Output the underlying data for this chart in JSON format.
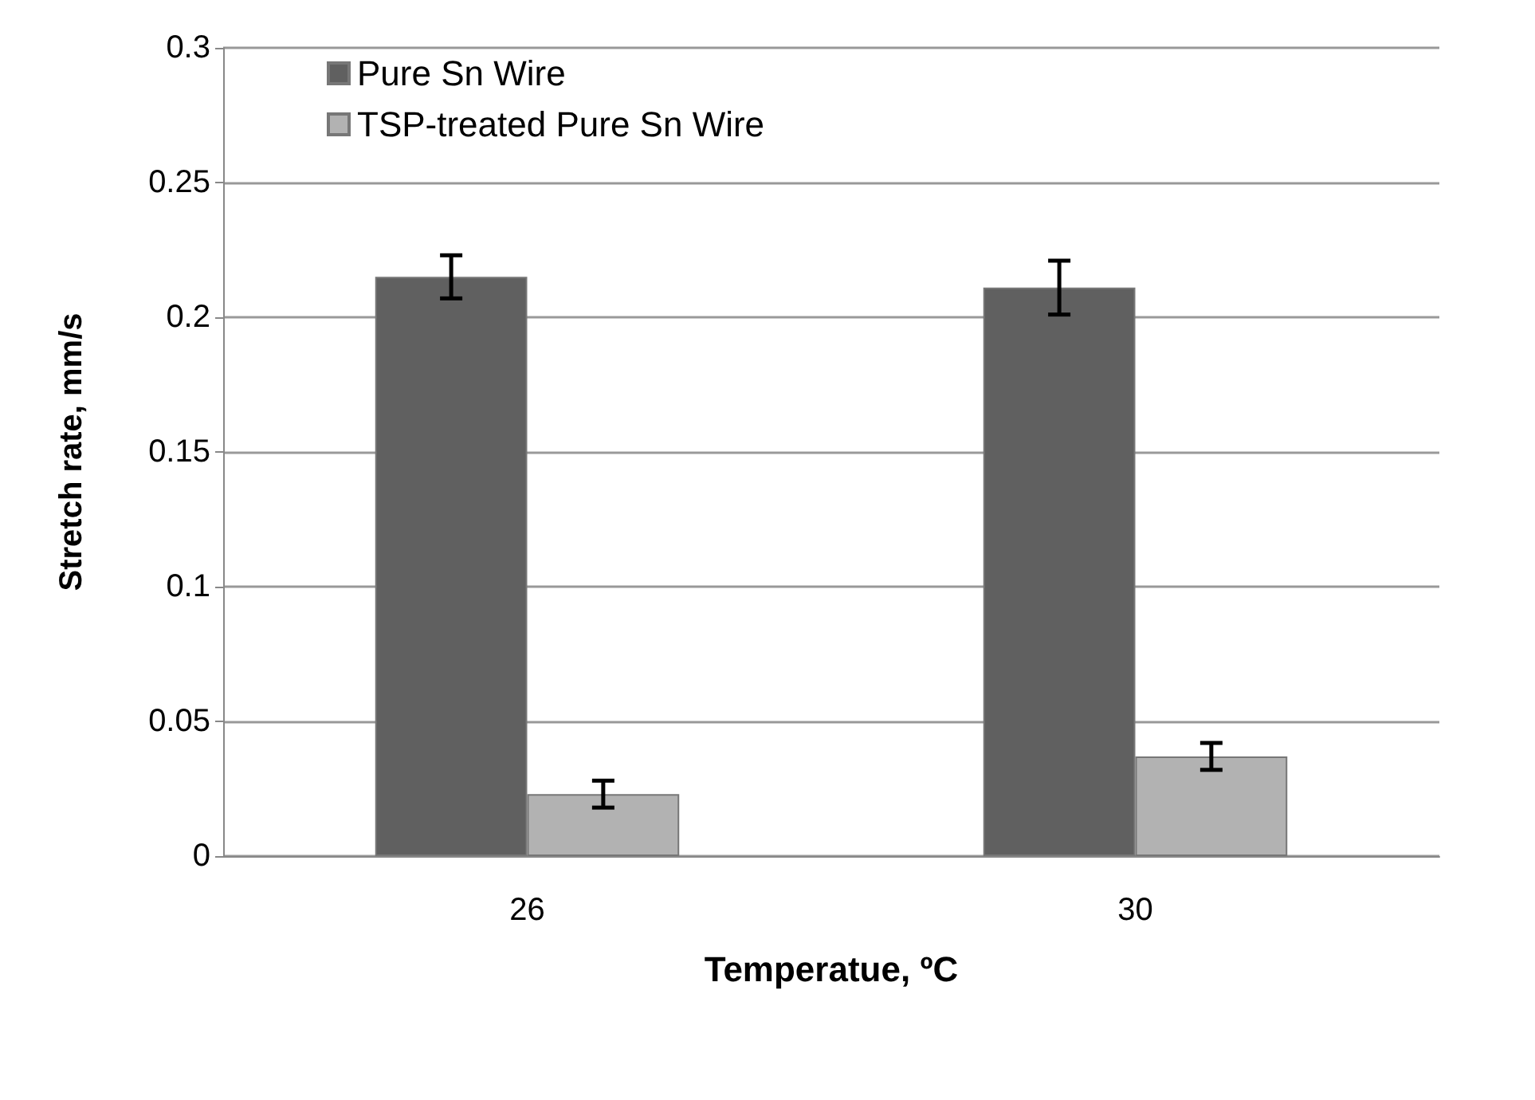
{
  "chart_data": {
    "type": "bar",
    "xlabel": "Temperatue, ºC",
    "ylabel": "Stretch rate, mm/s",
    "categories": [
      "26",
      "30"
    ],
    "series": [
      {
        "name": "Pure Sn Wire",
        "color": "#606060",
        "values": [
          0.215,
          0.211
        ],
        "errors": [
          0.008,
          0.01
        ]
      },
      {
        "name": "TSP-treated Pure Sn Wire",
        "color": "#b2b2b2",
        "values": [
          0.023,
          0.037
        ],
        "errors": [
          0.005,
          0.005
        ]
      }
    ],
    "ylim": [
      0,
      0.3
    ],
    "yticks": [
      0,
      0.05,
      0.1,
      0.15,
      0.2,
      0.25,
      0.3
    ],
    "grid": "y",
    "legend": "top left"
  }
}
